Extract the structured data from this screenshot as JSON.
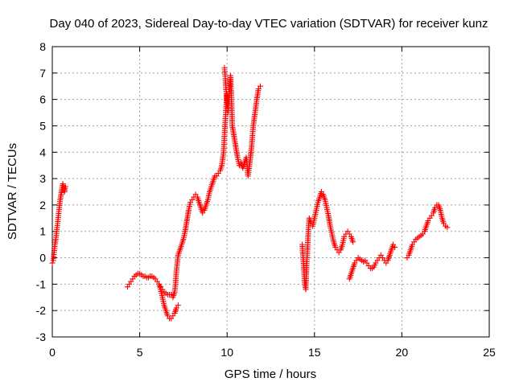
{
  "chart_data": {
    "type": "scatter",
    "title": "Day 040 of 2023, Sidereal Day-to-day VTEC variation (SDTVAR) for receiver kunz",
    "xlabel": "GPS time / hours",
    "ylabel": "SDTVAR / TECUs",
    "xlim": [
      0,
      25
    ],
    "ylim": [
      -3,
      8
    ],
    "xticks": [
      0,
      5,
      10,
      15,
      20,
      25
    ],
    "yticks": [
      -3,
      -2,
      -1,
      0,
      1,
      2,
      3,
      4,
      5,
      6,
      7,
      8
    ],
    "grid": true,
    "marker": "+",
    "color": "#ff0000",
    "segments": [
      [
        [
          0.0,
          -0.2
        ],
        [
          0.05,
          -0.1
        ],
        [
          0.1,
          0.2
        ],
        [
          0.15,
          0.5
        ],
        [
          0.2,
          0.7
        ],
        [
          0.25,
          1.0
        ],
        [
          0.3,
          1.3
        ],
        [
          0.35,
          1.6
        ],
        [
          0.4,
          1.9
        ],
        [
          0.45,
          2.2
        ],
        [
          0.5,
          2.4
        ],
        [
          0.55,
          2.6
        ],
        [
          0.6,
          2.8
        ],
        [
          0.65,
          2.6
        ],
        [
          0.7,
          2.5
        ],
        [
          0.75,
          2.7
        ]
      ],
      [
        [
          4.3,
          -1.1
        ],
        [
          4.4,
          -1.0
        ],
        [
          4.5,
          -0.9
        ],
        [
          4.6,
          -0.8
        ],
        [
          4.7,
          -0.7
        ],
        [
          4.8,
          -0.65
        ],
        [
          4.9,
          -0.6
        ],
        [
          5.0,
          -0.6
        ],
        [
          5.1,
          -0.65
        ],
        [
          5.2,
          -0.7
        ],
        [
          5.3,
          -0.7
        ],
        [
          5.4,
          -0.75
        ],
        [
          5.5,
          -0.75
        ],
        [
          5.6,
          -0.7
        ],
        [
          5.7,
          -0.7
        ],
        [
          5.8,
          -0.75
        ],
        [
          5.9,
          -0.8
        ],
        [
          6.0,
          -0.9
        ],
        [
          6.1,
          -1.0
        ],
        [
          6.2,
          -1.2
        ],
        [
          6.3,
          -1.5
        ],
        [
          6.4,
          -1.8
        ],
        [
          6.5,
          -2.0
        ],
        [
          6.6,
          -2.2
        ],
        [
          6.7,
          -2.3
        ],
        [
          6.8,
          -2.3
        ],
        [
          6.9,
          -2.2
        ],
        [
          7.0,
          -2.1
        ],
        [
          7.1,
          -1.9
        ],
        [
          7.2,
          -1.8
        ]
      ],
      [
        [
          6.2,
          -1.1
        ],
        [
          6.3,
          -1.2
        ],
        [
          6.4,
          -1.3
        ],
        [
          6.5,
          -1.35
        ],
        [
          6.6,
          -1.4
        ],
        [
          6.7,
          -1.4
        ],
        [
          6.8,
          -1.4
        ],
        [
          6.9,
          -1.5
        ],
        [
          7.0,
          -1.3
        ],
        [
          7.05,
          -1.0
        ],
        [
          7.1,
          -0.5
        ],
        [
          7.15,
          -0.2
        ],
        [
          7.2,
          0.1
        ],
        [
          7.3,
          0.3
        ],
        [
          7.4,
          0.5
        ],
        [
          7.5,
          0.7
        ],
        [
          7.6,
          1.0
        ],
        [
          7.7,
          1.4
        ],
        [
          7.8,
          1.8
        ],
        [
          7.9,
          2.1
        ],
        [
          8.0,
          2.2
        ],
        [
          8.1,
          2.3
        ],
        [
          8.2,
          2.4
        ],
        [
          8.3,
          2.3
        ],
        [
          8.4,
          2.1
        ],
        [
          8.5,
          1.9
        ],
        [
          8.6,
          1.7
        ],
        [
          8.7,
          1.8
        ],
        [
          8.8,
          2.0
        ],
        [
          8.9,
          2.2
        ],
        [
          9.0,
          2.5
        ],
        [
          9.1,
          2.7
        ],
        [
          9.2,
          2.9
        ],
        [
          9.3,
          3.1
        ],
        [
          9.4,
          3.1
        ],
        [
          9.5,
          3.2
        ],
        [
          9.6,
          3.3
        ],
        [
          9.7,
          3.5
        ],
        [
          9.8,
          4.0
        ],
        [
          9.85,
          4.6
        ],
        [
          9.9,
          5.2
        ],
        [
          9.95,
          5.8
        ],
        [
          10.0,
          6.2
        ],
        [
          10.05,
          5.5
        ],
        [
          10.1,
          6.0
        ],
        [
          10.15,
          6.6
        ],
        [
          10.2,
          6.9
        ],
        [
          10.25,
          6.0
        ],
        [
          10.3,
          5.0
        ],
        [
          10.4,
          4.6
        ],
        [
          10.5,
          4.2
        ],
        [
          10.6,
          3.8
        ],
        [
          10.7,
          3.5
        ],
        [
          10.8,
          3.6
        ],
        [
          10.9,
          3.4
        ],
        [
          11.0,
          3.6
        ],
        [
          11.1,
          3.8
        ],
        [
          11.2,
          3.1
        ],
        [
          11.3,
          3.6
        ],
        [
          11.4,
          4.2
        ],
        [
          11.5,
          5.0
        ],
        [
          11.6,
          5.5
        ],
        [
          11.7,
          6.0
        ],
        [
          11.8,
          6.4
        ],
        [
          11.9,
          6.5
        ]
      ],
      [
        [
          9.85,
          7.2
        ],
        [
          9.9,
          6.8
        ],
        [
          9.95,
          6.3
        ],
        [
          10.0,
          5.8
        ]
      ],
      [
        [
          14.3,
          0.5
        ],
        [
          14.35,
          0.0
        ],
        [
          14.4,
          -0.5
        ],
        [
          14.45,
          -1.0
        ],
        [
          14.5,
          -1.2
        ],
        [
          14.55,
          -0.3
        ],
        [
          14.6,
          0.3
        ],
        [
          14.65,
          1.0
        ],
        [
          14.7,
          1.5
        ],
        [
          14.8,
          1.3
        ],
        [
          14.9,
          1.2
        ],
        [
          15.0,
          1.5
        ],
        [
          15.1,
          1.8
        ],
        [
          15.2,
          2.1
        ],
        [
          15.3,
          2.3
        ],
        [
          15.4,
          2.5
        ],
        [
          15.5,
          2.4
        ],
        [
          15.6,
          2.2
        ],
        [
          15.7,
          1.9
        ],
        [
          15.8,
          1.6
        ],
        [
          15.9,
          1.2
        ],
        [
          16.0,
          0.9
        ],
        [
          16.1,
          0.6
        ],
        [
          16.2,
          0.4
        ],
        [
          16.3,
          0.3
        ],
        [
          16.4,
          0.2
        ],
        [
          16.5,
          0.3
        ],
        [
          16.6,
          0.5
        ],
        [
          16.7,
          0.8
        ],
        [
          16.8,
          0.9
        ],
        [
          16.9,
          1.0
        ],
        [
          17.0,
          0.9
        ],
        [
          17.1,
          0.8
        ],
        [
          17.2,
          0.6
        ]
      ],
      [
        [
          17.0,
          -0.8
        ],
        [
          17.1,
          -0.6
        ],
        [
          17.2,
          -0.4
        ],
        [
          17.3,
          -0.2
        ],
        [
          17.4,
          -0.1
        ],
        [
          17.5,
          0.0
        ],
        [
          17.6,
          -0.05
        ],
        [
          17.7,
          -0.1
        ],
        [
          17.8,
          -0.15
        ],
        [
          17.9,
          -0.1
        ],
        [
          18.0,
          -0.2
        ],
        [
          18.1,
          -0.3
        ],
        [
          18.2,
          -0.4
        ],
        [
          18.3,
          -0.4
        ],
        [
          18.4,
          -0.35
        ],
        [
          18.5,
          -0.2
        ],
        [
          18.6,
          -0.1
        ],
        [
          18.7,
          0.0
        ],
        [
          18.8,
          0.1
        ],
        [
          18.9,
          0.0
        ],
        [
          19.0,
          -0.1
        ],
        [
          19.1,
          -0.2
        ],
        [
          19.2,
          -0.1
        ],
        [
          19.3,
          0.1
        ],
        [
          19.4,
          0.3
        ],
        [
          19.5,
          0.5
        ],
        [
          19.6,
          0.4
        ]
      ],
      [
        [
          20.3,
          0.0
        ],
        [
          20.4,
          0.1
        ],
        [
          20.5,
          0.3
        ],
        [
          20.6,
          0.5
        ],
        [
          20.7,
          0.6
        ],
        [
          20.8,
          0.7
        ],
        [
          20.9,
          0.75
        ],
        [
          21.0,
          0.8
        ],
        [
          21.1,
          0.85
        ],
        [
          21.2,
          0.9
        ],
        [
          21.3,
          1.0
        ],
        [
          21.4,
          1.2
        ],
        [
          21.5,
          1.4
        ],
        [
          21.6,
          1.5
        ],
        [
          21.7,
          1.6
        ],
        [
          21.8,
          1.7
        ],
        [
          21.9,
          1.9
        ],
        [
          22.0,
          2.0
        ],
        [
          22.1,
          2.0
        ],
        [
          22.2,
          1.8
        ],
        [
          22.3,
          1.5
        ],
        [
          22.4,
          1.3
        ],
        [
          22.5,
          1.2
        ],
        [
          22.6,
          1.15
        ]
      ]
    ]
  }
}
